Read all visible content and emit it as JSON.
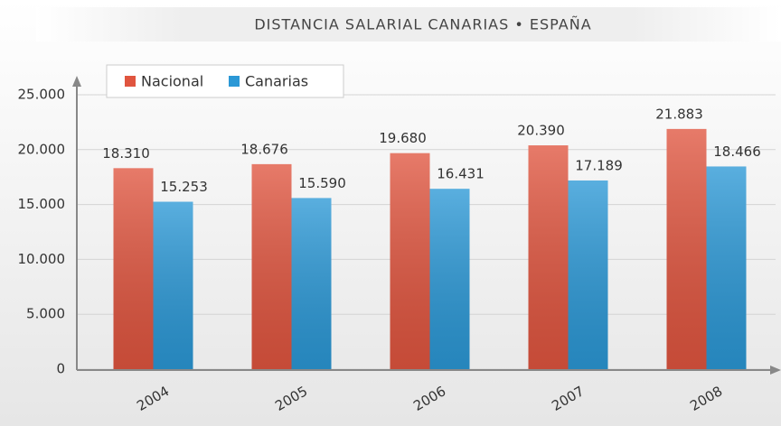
{
  "chart_data": {
    "type": "bar",
    "title": "DISTANCIA SALARIAL CANARIAS • ESPAÑA",
    "categories": [
      "2004",
      "2005",
      "2006",
      "2007",
      "2008"
    ],
    "series": [
      {
        "name": "Nacional",
        "color": "#e0553f",
        "values": [
          18310,
          18676,
          19680,
          20390,
          21883
        ],
        "value_labels": [
          "18.310",
          "18.676",
          "19.680",
          "20.390",
          "21.883"
        ]
      },
      {
        "name": "Canarias",
        "color": "#2b98d6",
        "values": [
          15253,
          15590,
          16431,
          17189,
          18466
        ],
        "value_labels": [
          "15.253",
          "15.590",
          "16.431",
          "17.189",
          "18.466"
        ]
      }
    ],
    "ylim": [
      0,
      25000
    ],
    "yticks": [
      0,
      {
        "value": 5000,
        "label": "5.000"
      },
      {
        "value": 10000,
        "label": "10.000"
      },
      {
        "value": 15000,
        "label": "15.000"
      },
      {
        "value": 20000,
        "label": "20.000"
      },
      {
        "value": 25000,
        "label": "25.000"
      }
    ],
    "grid": true,
    "legend": "top-left"
  }
}
